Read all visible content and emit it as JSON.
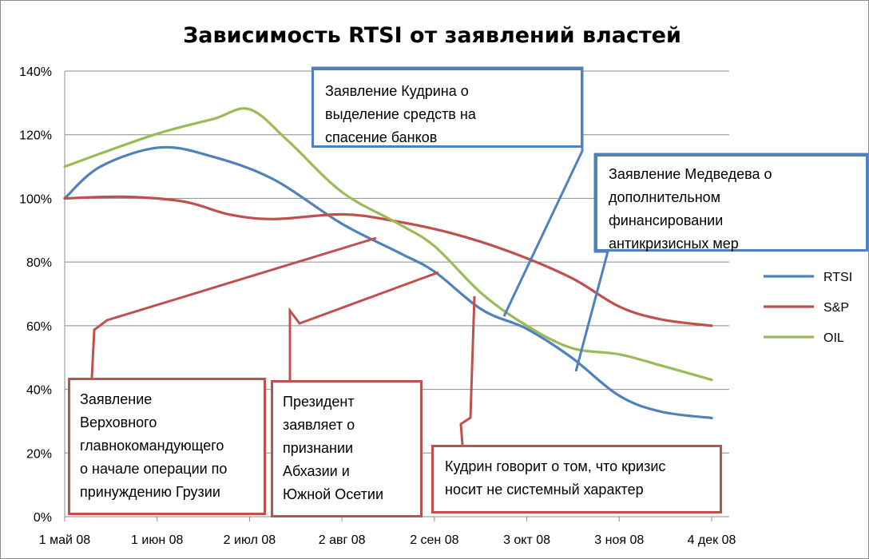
{
  "chart_data": {
    "type": "line",
    "title": "Зависимость RTSI от заявлений властей",
    "x": [
      "1 май 08",
      "1 июн 08",
      "2 июл 08",
      "2 авг 08",
      "2 сен 08",
      "3 окт 08",
      "3 ноя 08",
      "4 дек 08"
    ],
    "x_days": [
      0,
      31,
      62,
      93,
      124,
      155,
      186,
      217
    ],
    "y_ticks": [
      "0%",
      "20%",
      "40%",
      "60%",
      "80%",
      "100%",
      "120%",
      "140%"
    ],
    "ylim": [
      0,
      140
    ],
    "xlabel": "",
    "ylabel": "",
    "grid": true,
    "legend_position": "right",
    "series": [
      {
        "name": "RTSI",
        "color": "#4f81bd",
        "points": [
          [
            0,
            100
          ],
          [
            12,
            110
          ],
          [
            32,
            116
          ],
          [
            50,
            113
          ],
          [
            70,
            106
          ],
          [
            93,
            92
          ],
          [
            112,
            83
          ],
          [
            124,
            77
          ],
          [
            140,
            65
          ],
          [
            155,
            59
          ],
          [
            170,
            50
          ],
          [
            186,
            38
          ],
          [
            200,
            33
          ],
          [
            217,
            31
          ]
        ]
      },
      {
        "name": "S&P",
        "color": "#c0504d",
        "points": [
          [
            0,
            100
          ],
          [
            20,
            100.5
          ],
          [
            40,
            99
          ],
          [
            55,
            95
          ],
          [
            70,
            93.5
          ],
          [
            93,
            95
          ],
          [
            110,
            93
          ],
          [
            130,
            89
          ],
          [
            150,
            83
          ],
          [
            170,
            75
          ],
          [
            186,
            66
          ],
          [
            200,
            62
          ],
          [
            217,
            60
          ]
        ]
      },
      {
        "name": "OIL",
        "color": "#9bbb59",
        "points": [
          [
            0,
            110
          ],
          [
            30,
            120
          ],
          [
            50,
            125
          ],
          [
            62,
            128
          ],
          [
            75,
            118
          ],
          [
            93,
            102
          ],
          [
            112,
            92
          ],
          [
            124,
            85
          ],
          [
            140,
            70
          ],
          [
            155,
            60
          ],
          [
            170,
            53
          ],
          [
            186,
            51
          ],
          [
            200,
            47.5
          ],
          [
            217,
            43
          ]
        ]
      }
    ],
    "annotations": [
      {
        "text": "Заявление Кудрина о\nвыделение средств на\nспасение банков",
        "color": "#4f81bd"
      },
      {
        "text": "Заявление Медведева о\nдополнительном\nфинансировании\nантикризисных мер",
        "color": "#4f81bd"
      },
      {
        "text": "Заявление\nВерховного\nглавнокомандующего\nо начале операции по\nпринуждению Грузии",
        "color": "#c0504d"
      },
      {
        "text": "Президент\nзаявляет о\nпризнании\nАбхазии и\nЮжной Осетии",
        "color": "#c0504d"
      },
      {
        "text": "Кудрин говорит о том, что кризис\nносит не системный характер",
        "color": "#c0504d"
      }
    ]
  }
}
